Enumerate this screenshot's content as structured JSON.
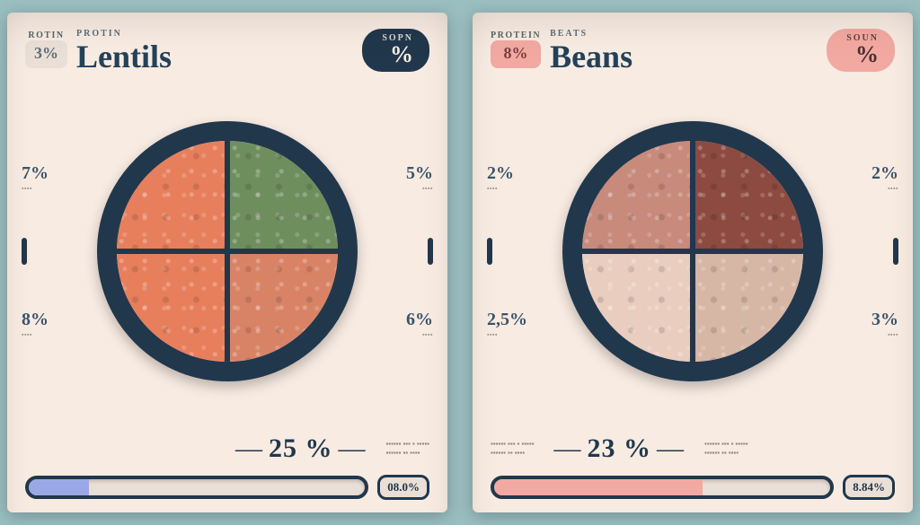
{
  "page_bg": "#9abfc1",
  "card_bg": "#f8ebe2",
  "ring_color": "#21374c",
  "cards": [
    {
      "left_chip": {
        "label": "ROTIN",
        "value": "3%",
        "bg": "#eadfd6",
        "fg": "#5f6d78"
      },
      "kicker": "PROTIN",
      "title": "Lentils",
      "right_pill": {
        "top": "SOPN",
        "main": "%",
        "bg": "#21374c",
        "fg": "#f8ebe2"
      },
      "ring_quads": {
        "tl": "#e77f5c",
        "tr": "#6f8e5e",
        "bl": "#e77f5c",
        "br": "#d98366"
      },
      "left_stats": [
        {
          "value": "7%",
          "sub": ""
        },
        {
          "value": "8%",
          "sub": ""
        }
      ],
      "right_stats": [
        {
          "value": "5%",
          "sub": ""
        },
        {
          "value": "6%",
          "sub": ""
        }
      ],
      "footer_pct": "25 %",
      "footer_blurb": "",
      "progress": {
        "fill_pct": 18,
        "fill_color": "#9aa8e6",
        "label": "08.0%"
      }
    },
    {
      "left_chip": {
        "label": "PROTEIN",
        "value": "8%",
        "bg": "#f2a9a1",
        "fg": "#7a3f3f"
      },
      "kicker": "BEATS",
      "title": "Beans",
      "right_pill": {
        "top": "SOUN",
        "main": "%",
        "bg": "#f2a9a1",
        "fg": "#4a2f2f"
      },
      "ring_quads": {
        "tl": "#c78a7b",
        "tr": "#8d4a40",
        "bl": "#e9cdbf",
        "br": "#d6b6a4"
      },
      "left_stats": [
        {
          "value": "2%",
          "sub": ""
        },
        {
          "value": "2,5%",
          "sub": ""
        }
      ],
      "right_stats": [
        {
          "value": "2%",
          "sub": ""
        },
        {
          "value": "3%",
          "sub": ""
        }
      ],
      "footer_pct": "23 %",
      "footer_blurb": "",
      "progress": {
        "fill_pct": 62,
        "fill_color": "#f2a9a1",
        "label": "8.84%"
      }
    }
  ]
}
